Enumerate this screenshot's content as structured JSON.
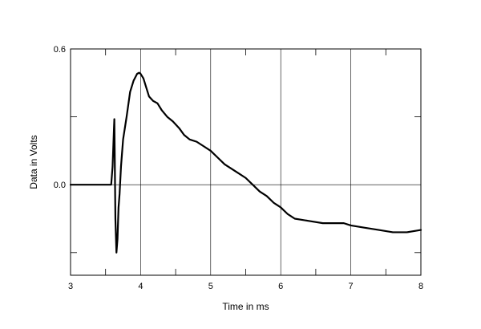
{
  "chart_data": {
    "type": "line",
    "title": "",
    "xlabel": "Time in ms",
    "ylabel": "Data in Volts",
    "xlim": [
      3,
      8
    ],
    "ylim": [
      -0.4,
      0.6
    ],
    "x_ticks": [
      3,
      4,
      5,
      6,
      7,
      8
    ],
    "x_tick_labels": [
      "3",
      "4",
      "5",
      "6",
      "7",
      "8"
    ],
    "y_tick_labels": [
      {
        "value": 0.6,
        "label": "0.6"
      },
      {
        "value": 0.0,
        "label": "0.0"
      }
    ],
    "y_minor_ticks": [
      0.3,
      -0.3
    ],
    "x_minor_ticks": [
      3.5,
      4.5,
      5.5,
      6.5,
      7.5
    ],
    "grid": true,
    "series": [
      {
        "color": "#000000",
        "x": [
          3.0,
          3.5,
          3.58,
          3.6,
          3.62,
          3.625,
          3.63,
          3.64,
          3.655,
          3.67,
          3.685,
          3.7,
          3.72,
          3.75,
          3.8,
          3.85,
          3.9,
          3.95,
          3.98,
          4.0,
          4.04,
          4.08,
          4.12,
          4.18,
          4.24,
          4.3,
          4.38,
          4.46,
          4.55,
          4.62,
          4.7,
          4.8,
          4.9,
          5.0,
          5.1,
          5.2,
          5.3,
          5.4,
          5.5,
          5.6,
          5.7,
          5.8,
          5.9,
          6.0,
          6.1,
          6.2,
          6.4,
          6.6,
          6.8,
          6.9,
          7.0,
          7.2,
          7.4,
          7.6,
          7.8,
          8.0
        ],
        "y": [
          0.0,
          0.0,
          0.0,
          0.08,
          0.25,
          0.29,
          0.15,
          -0.15,
          -0.3,
          -0.24,
          -0.1,
          -0.04,
          0.08,
          0.2,
          0.3,
          0.41,
          0.46,
          0.49,
          0.495,
          0.49,
          0.47,
          0.43,
          0.39,
          0.37,
          0.36,
          0.33,
          0.3,
          0.28,
          0.25,
          0.22,
          0.2,
          0.19,
          0.17,
          0.15,
          0.12,
          0.09,
          0.07,
          0.05,
          0.03,
          0.0,
          -0.03,
          -0.05,
          -0.08,
          -0.1,
          -0.13,
          -0.15,
          -0.16,
          -0.17,
          -0.17,
          -0.17,
          -0.18,
          -0.19,
          -0.2,
          -0.21,
          -0.21,
          -0.2
        ]
      }
    ]
  }
}
